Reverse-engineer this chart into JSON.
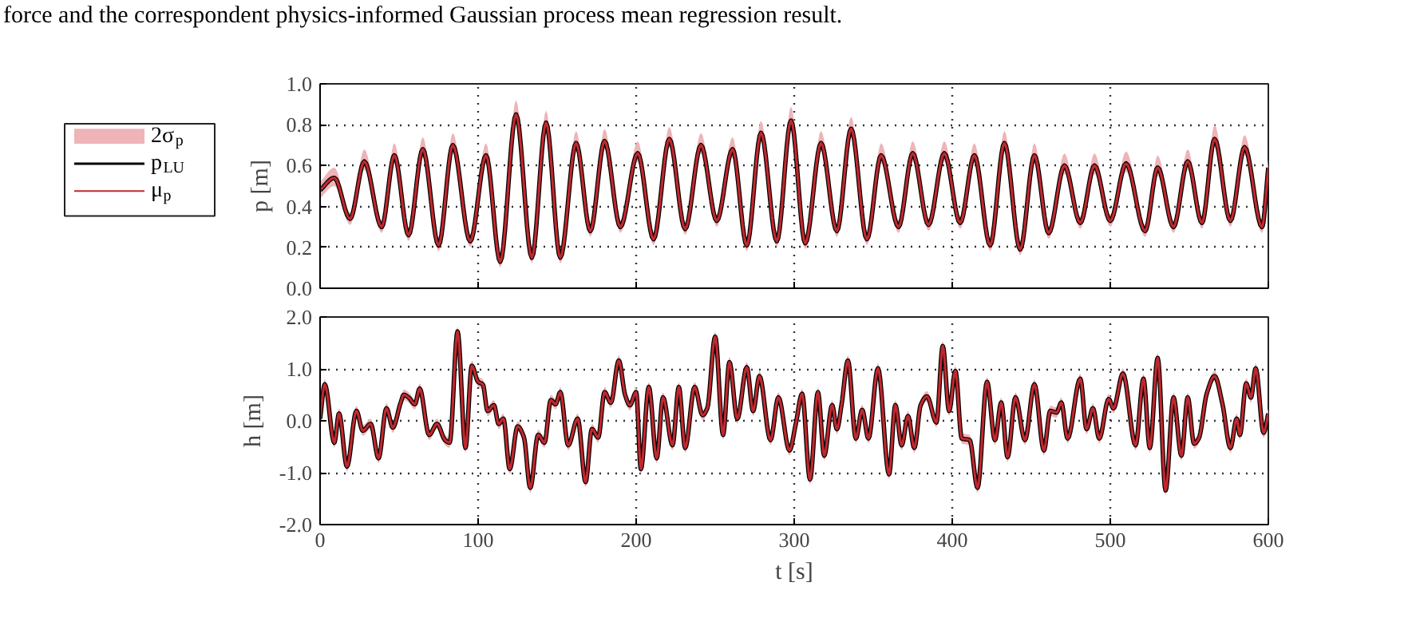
{
  "chart_data": [
    {
      "type": "line",
      "annotations": [
        "force and the correspondent physics-informed Gaussian process mean regression result."
      ],
      "ylabel": "p [m]",
      "xlim": [
        0,
        600
      ],
      "xticks": [
        0,
        100,
        200,
        300,
        400,
        500,
        600
      ],
      "ylim": [
        0,
        1
      ],
      "yticks": [
        {
          "value": 0,
          "label": "0.0"
        },
        {
          "value": 0.2,
          "label": "0.2"
        },
        {
          "value": 0.4,
          "label": "0.4"
        },
        {
          "value": 0.6,
          "label": "0.6"
        },
        {
          "value": 0.8,
          "label": "0.8"
        },
        {
          "value": 1,
          "label": "1.0"
        }
      ],
      "tick_labels": "y",
      "grid": true,
      "legend": "left",
      "line_style": "solid",
      "x": [
        0,
        9,
        19,
        28,
        39,
        47,
        56,
        65,
        75,
        84,
        95,
        105,
        114,
        124,
        134,
        143,
        152,
        162,
        171,
        180,
        190,
        201,
        211,
        221,
        231,
        241,
        251,
        261,
        270,
        279,
        289,
        298,
        307,
        317,
        327,
        336,
        346,
        355,
        366,
        375,
        385,
        395,
        405,
        414,
        424,
        433,
        443,
        452,
        461,
        471,
        481,
        490,
        500,
        510,
        522,
        530,
        540,
        549,
        558,
        566,
        576,
        585,
        596,
        600
      ],
      "series": [
        {
          "type": "area",
          "name": "2σ$_{p}$",
          "color": "#eeb4b8",
          "values": [
            null,
            null,
            null,
            null,
            null,
            null,
            null,
            null,
            null,
            null,
            null,
            null,
            null,
            null,
            null,
            null,
            null,
            null,
            null,
            null,
            null,
            null,
            null,
            null,
            null,
            null,
            null,
            null,
            null,
            null,
            null,
            null,
            null,
            null,
            null,
            null,
            null,
            null,
            null,
            null,
            null,
            null,
            null,
            null,
            null,
            null,
            null,
            null,
            null,
            null,
            null,
            null,
            null,
            null,
            null,
            null,
            null,
            null,
            null,
            null,
            null,
            null,
            null,
            null
          ],
          "upper": [
            0.52,
            0.59,
            0.37,
            0.68,
            0.33,
            0.71,
            0.29,
            0.74,
            0.24,
            0.76,
            0.26,
            0.71,
            0.16,
            0.92,
            0.18,
            0.87,
            0.18,
            0.77,
            0.31,
            0.78,
            0.33,
            0.72,
            0.27,
            0.79,
            0.32,
            0.76,
            0.36,
            0.74,
            0.24,
            0.82,
            0.26,
            0.89,
            0.25,
            0.77,
            0.31,
            0.84,
            0.27,
            0.71,
            0.33,
            0.72,
            0.34,
            0.72,
            0.35,
            0.71,
            0.24,
            0.77,
            0.22,
            0.71,
            0.3,
            0.66,
            0.35,
            0.66,
            0.36,
            0.67,
            0.31,
            0.65,
            0.33,
            0.68,
            0.35,
            0.8,
            0.36,
            0.75,
            0.33,
            0.63
          ],
          "lower": [
            0.44,
            0.5,
            0.31,
            0.58,
            0.27,
            0.61,
            0.23,
            0.64,
            0.18,
            0.66,
            0.2,
            0.61,
            0.1,
            0.81,
            0.12,
            0.77,
            0.12,
            0.67,
            0.25,
            0.68,
            0.27,
            0.62,
            0.21,
            0.69,
            0.26,
            0.66,
            0.3,
            0.64,
            0.18,
            0.72,
            0.2,
            0.78,
            0.19,
            0.67,
            0.25,
            0.74,
            0.21,
            0.61,
            0.27,
            0.62,
            0.28,
            0.62,
            0.29,
            0.61,
            0.18,
            0.67,
            0.16,
            0.61,
            0.24,
            0.56,
            0.29,
            0.56,
            0.3,
            0.57,
            0.25,
            0.55,
            0.27,
            0.58,
            0.29,
            0.69,
            0.3,
            0.65,
            0.27,
            0.55
          ]
        },
        {
          "name": "p$_{LU}$",
          "color": "#000000",
          "values": [
            0.48,
            0.54,
            0.34,
            0.62,
            0.3,
            0.65,
            0.26,
            0.68,
            0.21,
            0.7,
            0.23,
            0.65,
            0.13,
            0.85,
            0.15,
            0.81,
            0.15,
            0.71,
            0.28,
            0.72,
            0.3,
            0.66,
            0.24,
            0.73,
            0.29,
            0.7,
            0.33,
            0.68,
            0.21,
            0.76,
            0.23,
            0.82,
            0.22,
            0.71,
            0.28,
            0.78,
            0.24,
            0.65,
            0.3,
            0.66,
            0.31,
            0.66,
            0.32,
            0.65,
            0.21,
            0.71,
            0.19,
            0.65,
            0.27,
            0.6,
            0.32,
            0.6,
            0.33,
            0.61,
            0.28,
            0.59,
            0.3,
            0.62,
            0.32,
            0.73,
            0.33,
            0.69,
            0.3,
            0.59
          ]
        },
        {
          "name": "μ$_{p}$",
          "color": "#c0282e",
          "values": [
            0.48,
            0.54,
            0.34,
            0.62,
            0.3,
            0.65,
            0.26,
            0.68,
            0.21,
            0.7,
            0.23,
            0.65,
            0.13,
            0.85,
            0.15,
            0.81,
            0.15,
            0.71,
            0.28,
            0.72,
            0.3,
            0.66,
            0.24,
            0.73,
            0.29,
            0.7,
            0.33,
            0.68,
            0.21,
            0.76,
            0.23,
            0.82,
            0.22,
            0.71,
            0.28,
            0.78,
            0.24,
            0.65,
            0.3,
            0.66,
            0.31,
            0.66,
            0.32,
            0.65,
            0.21,
            0.71,
            0.19,
            0.65,
            0.27,
            0.6,
            0.32,
            0.6,
            0.33,
            0.61,
            0.28,
            0.59,
            0.3,
            0.62,
            0.32,
            0.73,
            0.33,
            0.69,
            0.3,
            0.59
          ]
        }
      ]
    },
    {
      "type": "line",
      "xlabel": "t [s]",
      "ylabel": "h [m]",
      "xlim": [
        0,
        600
      ],
      "xticks": [
        0,
        100,
        200,
        300,
        400,
        500,
        600
      ],
      "ylim": [
        -2,
        2
      ],
      "yticks": [
        {
          "value": -2,
          "label": "-2.0"
        },
        {
          "value": -1,
          "label": "-1.0"
        },
        {
          "value": 0,
          "label": "0.0"
        },
        {
          "value": 1,
          "label": "1.0"
        },
        {
          "value": 2,
          "label": "2.0"
        }
      ],
      "grid": true,
      "line_style": "solid",
      "x": [
        0,
        3,
        9,
        12,
        17,
        23,
        27,
        32,
        37,
        42,
        46,
        51,
        53,
        56,
        60,
        63,
        69,
        74,
        79,
        82,
        87,
        92,
        96,
        100,
        103,
        106,
        110,
        113,
        116,
        120,
        125,
        129,
        133,
        138,
        142,
        146,
        149,
        152,
        157,
        163,
        168,
        172,
        176,
        180,
        184,
        189,
        193,
        196,
        200,
        203,
        208,
        213,
        217,
        223,
        227,
        231,
        237,
        242,
        245,
        250,
        255,
        259,
        264,
        270,
        274,
        278,
        285,
        290,
        297,
        301,
        305,
        310,
        315,
        319,
        324,
        327,
        330,
        334,
        339,
        343,
        347,
        353,
        360,
        364,
        368,
        372,
        376,
        380,
        384,
        390,
        394,
        398,
        402,
        406,
        411,
        416,
        422,
        427,
        431,
        435,
        440,
        446,
        452,
        458,
        462,
        466,
        469,
        473,
        481,
        485,
        489,
        493,
        499,
        502,
        508,
        516,
        521,
        525,
        530,
        535,
        540,
        545,
        549,
        553,
        556,
        561,
        566,
        571,
        576,
        580,
        582,
        586,
        589,
        592,
        597,
        600
      ],
      "series": [
        {
          "type": "area",
          "color": "#eeb4b8",
          "values": [
            null,
            null,
            null,
            null,
            null,
            null,
            null,
            null,
            null,
            null,
            null,
            null,
            null,
            null,
            null,
            null,
            null,
            null,
            null,
            null,
            null,
            null,
            null,
            null,
            null,
            null,
            null,
            null,
            null,
            null,
            null,
            null,
            null,
            null,
            null,
            null,
            null,
            null,
            null,
            null,
            null,
            null,
            null,
            null,
            null,
            null,
            null,
            null,
            null,
            null,
            null,
            null,
            null,
            null,
            null,
            null,
            null,
            null,
            null,
            null,
            null,
            null,
            null,
            null,
            null,
            null,
            null,
            null,
            null,
            null,
            null,
            null,
            null,
            null,
            null,
            null,
            null,
            null,
            null,
            null,
            null,
            null,
            null,
            null,
            null,
            null,
            null,
            null,
            null,
            null,
            null,
            null,
            null,
            null,
            null,
            null,
            null,
            null,
            null,
            null,
            null,
            null,
            null,
            null,
            null,
            null,
            null,
            null,
            null,
            null,
            null,
            null,
            null,
            null,
            null,
            null,
            null,
            null,
            null,
            null,
            null,
            null,
            null,
            null,
            null,
            null,
            null,
            null,
            null,
            null,
            null,
            null,
            null,
            null,
            null,
            null
          ],
          "upper": [
            0.14,
            0.8,
            -0.32,
            0.24,
            -0.78,
            0.29,
            -0.09,
            0.04,
            -0.62,
            0.34,
            -0.03,
            0.45,
            0.6,
            0.55,
            0.42,
            0.72,
            -0.17,
            0.04,
            -0.27,
            -0.32,
            1.82,
            -0.42,
            1.16,
            0.85,
            0.8,
            0.29,
            0.4,
            0.04,
            0.14,
            -0.83,
            -0.01,
            -0.22,
            -1.19,
            -0.17,
            -0.32,
            0.5,
            0.42,
            0.65,
            -0.37,
            0.14,
            -1.08,
            -0.06,
            -0.22,
            0.65,
            0.45,
            1.26,
            0.6,
            0.4,
            0.65,
            -0.83,
            0.75,
            -0.62,
            0.55,
            -0.37,
            0.75,
            -0.42,
            0.75,
            0.21,
            0.34,
            1.72,
            -0.17,
            1.23,
            0.14,
            1.13,
            0.29,
            0.96,
            -0.27,
            0.55,
            -0.47,
            0.04,
            0.62,
            -1.03,
            0.65,
            -0.57,
            0.4,
            -0.06,
            0.42,
            1.26,
            -0.24,
            0.31,
            -0.24,
            1.11,
            -0.93,
            0.4,
            -0.37,
            0.19,
            -0.42,
            0.4,
            0.57,
            0.07,
            1.54,
            0.29,
            1.06,
            -0.24,
            -0.27,
            -1.19,
            0.85,
            -0.27,
            0.45,
            -0.6,
            0.55,
            -0.27,
            0.8,
            -0.47,
            0.29,
            0.26,
            0.45,
            -0.24,
            0.91,
            -0.06,
            0.34,
            -0.24,
            0.52,
            0.34,
            1.01,
            -0.37,
            0.91,
            -0.42,
            1.31,
            -1.24,
            0.55,
            -0.57,
            0.55,
            -0.34,
            -0.24,
            0.62,
            0.96,
            0.42,
            -0.42,
            0.14,
            -0.17,
            0.82,
            0.55,
            1.11,
            -0.13,
            0.24
          ],
          "lower": [
            -0.06,
            0.6,
            -0.52,
            0.04,
            -0.98,
            0.09,
            -0.29,
            -0.16,
            -0.82,
            0.14,
            -0.23,
            0.25,
            0.4,
            0.35,
            0.22,
            0.52,
            -0.37,
            -0.16,
            -0.47,
            -0.52,
            1.62,
            -0.62,
            0.96,
            0.65,
            0.6,
            0.09,
            0.2,
            -0.16,
            -0.06,
            -1.03,
            -0.21,
            -0.42,
            -1.39,
            -0.37,
            -0.52,
            0.3,
            0.22,
            0.45,
            -0.57,
            -0.06,
            -1.28,
            -0.26,
            -0.42,
            0.45,
            0.25,
            1.06,
            0.4,
            0.2,
            0.45,
            -1.03,
            0.55,
            -0.82,
            0.35,
            -0.57,
            0.55,
            -0.62,
            0.55,
            0.01,
            0.14,
            1.52,
            -0.37,
            1.03,
            -0.06,
            0.93,
            0.09,
            0.76,
            -0.47,
            0.35,
            -0.67,
            -0.16,
            0.42,
            -1.23,
            0.45,
            -0.77,
            0.2,
            -0.26,
            0.22,
            1.06,
            -0.44,
            0.11,
            -0.44,
            0.91,
            -1.13,
            0.2,
            -0.57,
            -0.01,
            -0.62,
            0.2,
            0.37,
            -0.13,
            1.34,
            0.09,
            0.86,
            -0.44,
            -0.47,
            -1.39,
            0.65,
            -0.47,
            0.25,
            -0.8,
            0.35,
            -0.47,
            0.6,
            -0.67,
            0.09,
            0.06,
            0.25,
            -0.44,
            0.71,
            -0.26,
            0.14,
            -0.44,
            0.32,
            0.14,
            0.81,
            -0.57,
            0.71,
            -0.62,
            1.11,
            -1.44,
            0.35,
            -0.77,
            0.35,
            -0.54,
            -0.44,
            0.42,
            0.76,
            0.22,
            -0.62,
            -0.06,
            -0.37,
            0.62,
            0.35,
            0.91,
            -0.33,
            0.04
          ]
        },
        {
          "color": "#000000",
          "values": [
            0.04,
            0.7,
            -0.42,
            0.14,
            -0.88,
            0.19,
            -0.19,
            -0.06,
            -0.72,
            0.24,
            -0.13,
            0.35,
            0.5,
            0.45,
            0.32,
            0.62,
            -0.27,
            -0.06,
            -0.37,
            -0.42,
            1.72,
            -0.52,
            1.06,
            0.75,
            0.7,
            0.19,
            0.3,
            -0.06,
            0.04,
            -0.93,
            -0.11,
            -0.32,
            -1.29,
            -0.27,
            -0.42,
            0.4,
            0.32,
            0.55,
            -0.47,
            0.04,
            -1.18,
            -0.16,
            -0.32,
            0.55,
            0.35,
            1.16,
            0.5,
            0.3,
            0.55,
            -0.93,
            0.65,
            -0.72,
            0.45,
            -0.47,
            0.65,
            -0.52,
            0.65,
            0.11,
            0.24,
            1.62,
            -0.27,
            1.13,
            0.04,
            1.03,
            0.19,
            0.86,
            -0.37,
            0.45,
            -0.57,
            -0.06,
            0.52,
            -1.13,
            0.55,
            -0.67,
            0.3,
            -0.16,
            0.32,
            1.16,
            -0.34,
            0.21,
            -0.34,
            1.01,
            -1.03,
            0.3,
            -0.47,
            0.09,
            -0.52,
            0.3,
            0.47,
            -0.03,
            1.44,
            0.19,
            0.96,
            -0.34,
            -0.37,
            -1.29,
            0.75,
            -0.37,
            0.35,
            -0.7,
            0.45,
            -0.37,
            0.7,
            -0.57,
            0.19,
            0.16,
            0.35,
            -0.34,
            0.81,
            -0.16,
            0.24,
            -0.34,
            0.42,
            0.24,
            0.91,
            -0.47,
            0.81,
            -0.52,
            1.21,
            -1.34,
            0.45,
            -0.67,
            0.45,
            -0.44,
            -0.34,
            0.52,
            0.86,
            0.32,
            -0.52,
            0.04,
            -0.27,
            0.72,
            0.45,
            1.01,
            -0.23,
            0.14
          ]
        },
        {
          "color": "#c0282e",
          "values": [
            0.04,
            0.7,
            -0.42,
            0.14,
            -0.88,
            0.19,
            -0.19,
            -0.06,
            -0.72,
            0.24,
            -0.13,
            0.35,
            0.5,
            0.45,
            0.32,
            0.62,
            -0.27,
            -0.06,
            -0.37,
            -0.42,
            1.72,
            -0.52,
            1.06,
            0.75,
            0.7,
            0.19,
            0.3,
            -0.06,
            0.04,
            -0.93,
            -0.11,
            -0.32,
            -1.29,
            -0.27,
            -0.42,
            0.4,
            0.32,
            0.55,
            -0.47,
            0.04,
            -1.18,
            -0.16,
            -0.32,
            0.55,
            0.35,
            1.16,
            0.5,
            0.3,
            0.55,
            -0.93,
            0.65,
            -0.72,
            0.45,
            -0.47,
            0.65,
            -0.52,
            0.65,
            0.11,
            0.24,
            1.62,
            -0.27,
            1.13,
            0.04,
            1.03,
            0.19,
            0.86,
            -0.37,
            0.45,
            -0.57,
            -0.06,
            0.52,
            -1.13,
            0.55,
            -0.67,
            0.3,
            -0.16,
            0.32,
            1.16,
            -0.34,
            0.21,
            -0.34,
            1.01,
            -1.03,
            0.3,
            -0.47,
            0.09,
            -0.52,
            0.3,
            0.47,
            -0.03,
            1.44,
            0.19,
            0.96,
            -0.34,
            -0.37,
            -1.29,
            0.75,
            -0.37,
            0.35,
            -0.7,
            0.45,
            -0.37,
            0.7,
            -0.57,
            0.19,
            0.16,
            0.35,
            -0.34,
            0.81,
            -0.16,
            0.24,
            -0.34,
            0.42,
            0.24,
            0.91,
            -0.47,
            0.81,
            -0.52,
            1.21,
            -1.34,
            0.45,
            -0.67,
            0.45,
            -0.44,
            -0.34,
            0.52,
            0.86,
            0.32,
            -0.52,
            0.04,
            -0.27,
            0.72,
            0.45,
            1.01,
            -0.23,
            0.14
          ]
        }
      ]
    }
  ]
}
